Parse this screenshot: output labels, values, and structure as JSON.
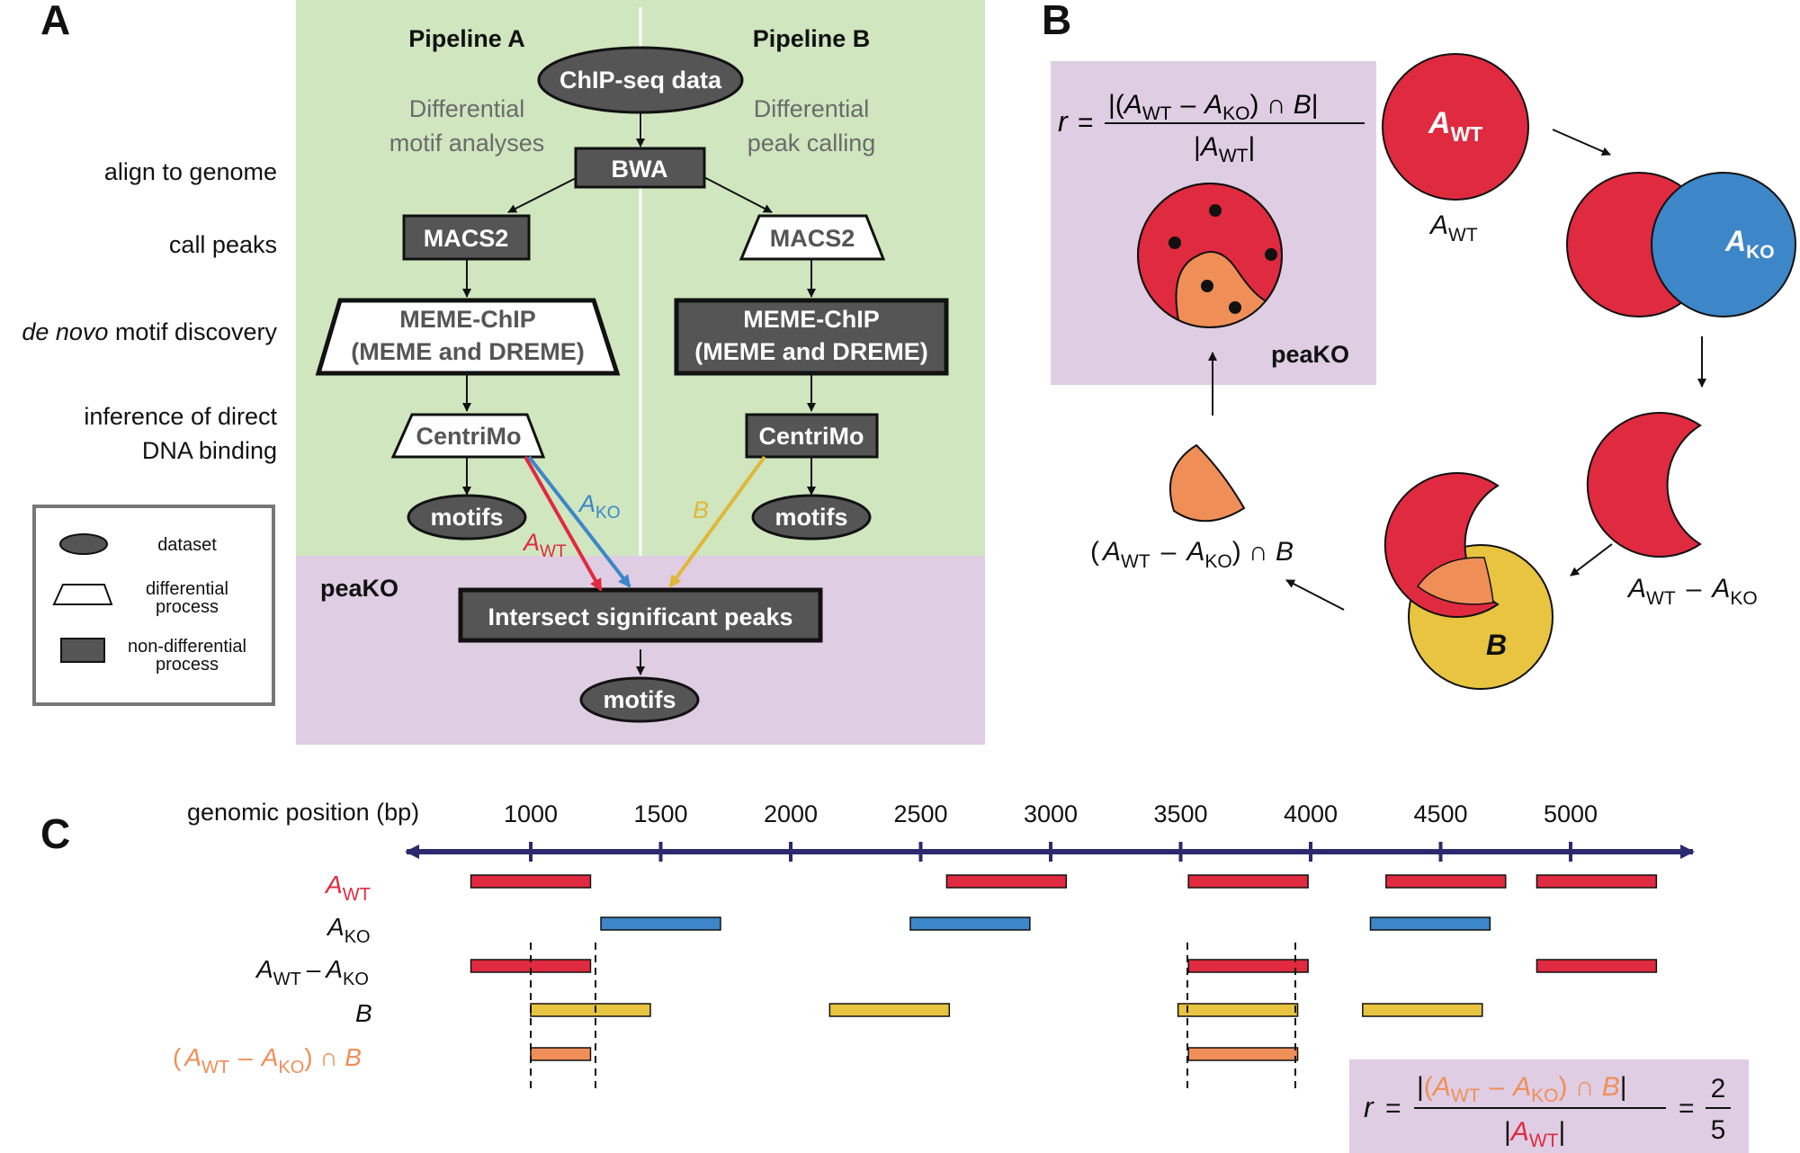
{
  "panels": {
    "a": "A",
    "b": "B",
    "c": "C"
  },
  "panel_a": {
    "pipeline_a": "Pipeline A",
    "pipeline_b": "Pipeline B",
    "desc_a": [
      "Differential",
      "motif analyses"
    ],
    "desc_b": [
      "Differential",
      "peak calling"
    ],
    "stages": {
      "align": "align to genome",
      "call": "call peaks",
      "denovo_italic": "de novo",
      "denovo_rest": " motif discovery",
      "infer1": "inference of direct",
      "infer2": "DNA binding"
    },
    "nodes": {
      "chipseq": "ChIP-seq data",
      "bwa": "BWA",
      "macs2": "MACS2",
      "meme1": "MEME-ChIP",
      "meme2": "(MEME and DREME)",
      "centrimo": "CentriMo",
      "motifs": "motifs",
      "intersect": "Intersect significant peaks"
    },
    "peako_label": "peaKO",
    "arrow_labels": {
      "a": "A",
      "wt": "WT",
      "ko": "KO",
      "b": "B"
    },
    "legend": {
      "dataset": "dataset",
      "diff1": "differential",
      "diff2": "process",
      "nondiff1": "non-differential",
      "nondiff2": "process"
    }
  },
  "panel_b": {
    "r": "r",
    "eq": "=",
    "num_open": "|(",
    "minus": "–",
    "cap_b": ") ∩ ",
    "num_close": "|",
    "den_open": "|",
    "den_close": "|",
    "peako": "peaKO",
    "sym_a": "A",
    "sub_wt": "WT",
    "sub_ko": "KO",
    "sym_b": "B",
    "paren_open": "(",
    "paren_close": ") ∩ "
  },
  "panel_c": {
    "axis_label": "genomic position (bp)",
    "ticks": [
      "1000",
      "1500",
      "2000",
      "2500",
      "3000",
      "3500",
      "4000",
      "4500",
      "5000"
    ],
    "rows": {
      "sym_a": "A",
      "wt": "WT",
      "ko": "KO",
      "minus": "–",
      "b": "B",
      "cap": ") ∩ ",
      "open": "("
    },
    "formula": {
      "r": "r",
      "eq": "=",
      "open": "|(",
      "close": "|",
      "num": "2",
      "den": "5"
    }
  },
  "colors": {
    "red": "#e02a3f",
    "blue": "#3d86c8",
    "yellow": "#e8c440",
    "orange": "#ef8f57",
    "navy": "#2b2a6e",
    "green": "#cfe6bf",
    "purple": "#dfcde4",
    "dark_node": "#555555"
  }
}
